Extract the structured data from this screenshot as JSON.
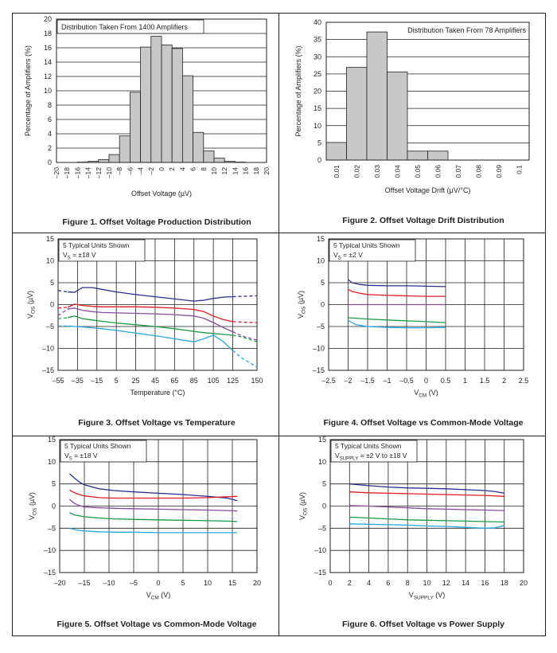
{
  "chart_data": [
    {
      "type": "bar",
      "caption": "Figure 1. Offset Voltage Production Distribution",
      "annotation": "Distribution Taken From 1400 Amplifiers",
      "xlabel": "Offset Voltage (µV)",
      "ylabel": "Percentage of Amplifiers (%)",
      "ylim": [
        0,
        20
      ],
      "yticks": [
        0,
        2,
        4,
        6,
        8,
        10,
        12,
        14,
        16,
        18,
        20
      ],
      "xticks": [
        "–20",
        "–18",
        "–16",
        "–14",
        "–12",
        "–10",
        "–8",
        "–6",
        "–4",
        "–2",
        "0",
        "2",
        "4",
        "6",
        "8",
        "10",
        "12",
        "14",
        "16",
        "18",
        "20"
      ],
      "bins": [
        [
          -16,
          -14,
          0.05
        ],
        [
          -14,
          -12,
          0.15
        ],
        [
          -12,
          -10,
          0.4
        ],
        [
          -10,
          -8,
          1.1
        ],
        [
          -8,
          -6,
          3.7
        ],
        [
          -6,
          -4,
          9.8
        ],
        [
          -4,
          -2,
          16.1
        ],
        [
          -2,
          0,
          17.6
        ],
        [
          0,
          2,
          16.4
        ],
        [
          2,
          4,
          15.9
        ],
        [
          4,
          6,
          12.1
        ],
        [
          6,
          8,
          4.2
        ],
        [
          8,
          10,
          1.6
        ],
        [
          10,
          12,
          0.6
        ],
        [
          12,
          14,
          0.15
        ],
        [
          14,
          16,
          0.05
        ]
      ]
    },
    {
      "type": "bar",
      "caption": "Figure 2. Offset Voltage Drift Distribution",
      "annotation": "Distribution Taken From 78 Amplifiers",
      "xlabel": "Offset Voltage Drift (µV/°C)",
      "ylabel": "Percentage of Amplifiers (%)",
      "ylim": [
        0,
        40
      ],
      "yticks": [
        0,
        5,
        10,
        15,
        20,
        25,
        30,
        35,
        40
      ],
      "xticks": [
        "0.01",
        "0.02",
        "0.03",
        "0.04",
        "0.05",
        "0.06",
        "0.07",
        "0.08",
        "0.09",
        "0.1"
      ],
      "values": [
        5.1,
        26.9,
        37.2,
        25.6,
        2.6,
        2.6,
        0,
        0,
        0,
        0
      ]
    },
    {
      "type": "line",
      "caption": "Figure 3. Offset Voltage vs Temperature",
      "annotation": [
        "5 Typical Units Shown",
        "V",
        "S",
        " = ±18 V"
      ],
      "xlabel": "Temperature (°C)",
      "ylabel": [
        "V",
        "OS",
        " (µV)"
      ],
      "xlim": [
        -55,
        150
      ],
      "ylim": [
        -15,
        15
      ],
      "xticks": [
        -55,
        -35,
        -15,
        5,
        25,
        45,
        65,
        85,
        105,
        125,
        150
      ],
      "xtick_labels": [
        "–55",
        "–35",
        "–15",
        "5",
        "25",
        "45",
        "65",
        "85",
        "105",
        "125",
        "150"
      ],
      "yticks": [
        -15,
        -10,
        -5,
        0,
        5,
        10,
        15
      ],
      "ytick_labels": [
        "–15",
        "–10",
        "–5",
        "0",
        "5",
        "10",
        "15"
      ],
      "solid_range": [
        -40,
        125
      ],
      "series": [
        {
          "color": "#2b2f8f",
          "x": [
            -55,
            -45,
            -38,
            -30,
            -20,
            -10,
            5,
            25,
            45,
            65,
            85,
            95,
            105,
            115,
            125,
            135,
            150
          ],
          "y": [
            3.2,
            2.9,
            2.8,
            3.9,
            3.9,
            3.5,
            2.9,
            2.3,
            1.8,
            1.3,
            0.8,
            1.0,
            1.4,
            1.7,
            1.8,
            1.9,
            2.0
          ]
        },
        {
          "color": "#e11b22",
          "x": [
            -55,
            -45,
            -38,
            -30,
            -20,
            -10,
            5,
            25,
            45,
            65,
            85,
            95,
            105,
            115,
            125,
            135,
            150
          ],
          "y": [
            -0.8,
            -0.6,
            0.1,
            -0.2,
            -0.4,
            -0.5,
            -0.5,
            -0.5,
            -0.6,
            -0.8,
            -1.1,
            -1.6,
            -2.6,
            -3.4,
            -3.9,
            -4.0,
            -4.1
          ]
        },
        {
          "color": "#8a4b9e",
          "x": [
            -55,
            -45,
            -38,
            -30,
            -20,
            -10,
            5,
            25,
            45,
            65,
            85,
            95,
            105,
            115,
            125,
            135,
            150
          ],
          "y": [
            -2.5,
            -1.0,
            -0.8,
            -1.3,
            -1.6,
            -1.8,
            -1.9,
            -2.0,
            -2.1,
            -2.3,
            -2.6,
            -3.1,
            -4.1,
            -5.2,
            -6.2,
            -7.2,
            -8.1
          ]
        },
        {
          "color": "#1a9a48",
          "x": [
            -55,
            -45,
            -38,
            -30,
            -20,
            -10,
            5,
            25,
            45,
            65,
            85,
            95,
            105,
            115,
            125,
            135,
            150
          ],
          "y": [
            -3.2,
            -3.0,
            -2.6,
            -3.2,
            -3.5,
            -3.8,
            -4.2,
            -4.6,
            -5.0,
            -5.5,
            -6.1,
            -6.4,
            -6.6,
            -6.8,
            -7.0,
            -7.4,
            -8.5
          ]
        },
        {
          "color": "#27a8e0",
          "x": [
            -55,
            -45,
            -38,
            -30,
            -20,
            -10,
            5,
            25,
            45,
            65,
            85,
            95,
            105,
            115,
            125,
            135,
            150
          ],
          "y": [
            -4.9,
            -4.9,
            -5.0,
            -5.1,
            -5.3,
            -5.5,
            -5.9,
            -6.5,
            -7.1,
            -7.8,
            -8.5,
            -7.8,
            -7.0,
            -8.4,
            -10.5,
            -12.3,
            -14.3
          ]
        }
      ]
    },
    {
      "type": "line",
      "caption": "Figure 4. Offset Voltage vs Common-Mode Voltage",
      "annotation": [
        "5 Typical Units Shown",
        "V",
        "S",
        " = ±2 V"
      ],
      "xlabel": [
        "V",
        "CM",
        " (V)"
      ],
      "ylabel": [
        "V",
        "OS",
        " (µV)"
      ],
      "xlim": [
        -2.5,
        2.5
      ],
      "ylim": [
        -15,
        15
      ],
      "xticks": [
        -2.5,
        -2,
        -1.5,
        -1,
        -0.5,
        0,
        0.5,
        1,
        1.5,
        2,
        2.5
      ],
      "xtick_labels": [
        "–2.5",
        "–2",
        "–1.5",
        "–1",
        "–0.5",
        "0",
        "0.5",
        "1",
        "1.5",
        "2",
        "2.5"
      ],
      "yticks": [
        -15,
        -10,
        -5,
        0,
        5,
        10,
        15
      ],
      "ytick_labels": [
        "–15",
        "–10",
        "–5",
        "0",
        "5",
        "10",
        "15"
      ],
      "series": [
        {
          "color": "#2b2f8f",
          "x": [
            -2,
            -1.9,
            -1.7,
            -1.5,
            -1,
            -0.5,
            0,
            0.5
          ],
          "y": [
            5.7,
            5.0,
            4.6,
            4.4,
            4.3,
            4.3,
            4.2,
            4.1
          ]
        },
        {
          "color": "#e11b22",
          "x": [
            -2,
            -1.9,
            -1.7,
            -1.5,
            -1,
            -0.5,
            0,
            0.5
          ],
          "y": [
            3.5,
            3.0,
            2.6,
            2.3,
            2.1,
            2.0,
            1.9,
            1.9
          ]
        },
        {
          "color": "#8a4b9e",
          "x": [
            -2,
            -1.5,
            -1,
            -0.5,
            0,
            0.5
          ],
          "y": [
            0,
            0,
            0,
            0,
            0,
            0
          ]
        },
        {
          "color": "#1a9a48",
          "x": [
            -2,
            -1.5,
            -1,
            -0.5,
            0,
            0.5
          ],
          "y": [
            -3.0,
            -3.3,
            -3.5,
            -3.7,
            -3.9,
            -4.1
          ]
        },
        {
          "color": "#27a8e0",
          "x": [
            -2,
            -1.8,
            -1.5,
            -1,
            -0.5,
            0,
            0.5
          ],
          "y": [
            -3.6,
            -4.6,
            -5.0,
            -5.2,
            -5.3,
            -5.3,
            -5.2
          ]
        }
      ]
    },
    {
      "type": "line",
      "caption": "Figure 5. Offset Voltage vs Common-Mode Voltage",
      "annotation": [
        "5 Typical Units Shown",
        "V",
        "S",
        " = ±18 V"
      ],
      "xlabel": [
        "V",
        "CM",
        " (V)"
      ],
      "ylabel": [
        "V",
        "OS",
        " (µV)"
      ],
      "xlim": [
        -20,
        20
      ],
      "ylim": [
        -15,
        15
      ],
      "xticks": [
        -20,
        -15,
        -10,
        -5,
        0,
        5,
        10,
        15,
        20
      ],
      "xtick_labels": [
        "–20",
        "–15",
        "–10",
        "–5",
        "0",
        "5",
        "10",
        "15",
        "20"
      ],
      "yticks": [
        -15,
        -10,
        -5,
        0,
        5,
        10,
        15
      ],
      "ytick_labels": [
        "–15",
        "–10",
        "–5",
        "0",
        "5",
        "10",
        "15"
      ],
      "series": [
        {
          "color": "#2b2f8f",
          "x": [
            -18,
            -17,
            -16,
            -15,
            -12,
            -9,
            -5,
            0,
            5,
            10,
            14,
            16
          ],
          "y": [
            7.3,
            6.3,
            5.4,
            4.8,
            3.9,
            3.5,
            3.2,
            2.9,
            2.6,
            2.2,
            1.8,
            1.2
          ]
        },
        {
          "color": "#e11b22",
          "x": [
            -18,
            -17,
            -16,
            -15,
            -12,
            -9,
            -5,
            0,
            5,
            10,
            14,
            16
          ],
          "y": [
            3.6,
            3.0,
            2.6,
            2.3,
            1.9,
            1.8,
            1.8,
            1.8,
            1.8,
            1.9,
            2.1,
            2.2
          ]
        },
        {
          "color": "#8a4b9e",
          "x": [
            -18,
            -17,
            -16,
            -15,
            -12,
            -9,
            -5,
            0,
            5,
            10,
            14,
            16
          ],
          "y": [
            1.5,
            0.6,
            0.1,
            -0.2,
            -0.4,
            -0.5,
            -0.6,
            -0.7,
            -0.8,
            -0.9,
            -1.0,
            -1.1
          ]
        },
        {
          "color": "#1a9a48",
          "x": [
            -18,
            -17,
            -16,
            -15,
            -12,
            -9,
            -5,
            0,
            5,
            10,
            14,
            16
          ],
          "y": [
            -1.5,
            -2.0,
            -2.2,
            -2.4,
            -2.7,
            -2.9,
            -3.0,
            -3.1,
            -3.2,
            -3.3,
            -3.4,
            -3.5
          ]
        },
        {
          "color": "#27a8e0",
          "x": [
            -18,
            -17,
            -16,
            -15,
            -12,
            -9,
            -5,
            0,
            5,
            10,
            14,
            16
          ],
          "y": [
            -5.0,
            -5.3,
            -5.5,
            -5.6,
            -5.8,
            -5.9,
            -5.9,
            -6.0,
            -6.0,
            -6.0,
            -6.0,
            -6.0
          ]
        }
      ]
    },
    {
      "type": "line",
      "caption": "Figure 6. Offset Voltage vs Power Supply",
      "annotation": [
        "5 Typical Units Shown",
        "V",
        "SUPPLY",
        " = ±2 V to ±18 V"
      ],
      "xlabel": [
        "V",
        "SUPPLY",
        " (V)"
      ],
      "ylabel": [
        "V",
        "OS",
        " (µV)"
      ],
      "xlim": [
        0,
        20
      ],
      "ylim": [
        -15,
        15
      ],
      "xticks": [
        0,
        2,
        4,
        6,
        8,
        10,
        12,
        14,
        16,
        18,
        20
      ],
      "xtick_labels": [
        "0",
        "2",
        "4",
        "6",
        "8",
        "10",
        "12",
        "14",
        "16",
        "18",
        "20"
      ],
      "yticks": [
        -15,
        -10,
        -5,
        0,
        5,
        10,
        15
      ],
      "ytick_labels": [
        "–15",
        "–10",
        "–5",
        "0",
        "5",
        "10",
        "15"
      ],
      "series": [
        {
          "color": "#2b2f8f",
          "x": [
            2,
            4,
            6,
            8,
            10,
            12,
            14,
            16,
            17,
            18
          ],
          "y": [
            5.0,
            4.6,
            4.3,
            4.1,
            4.0,
            3.9,
            3.7,
            3.5,
            3.3,
            2.9
          ]
        },
        {
          "color": "#e11b22",
          "x": [
            2,
            4,
            6,
            8,
            10,
            12,
            14,
            16,
            18
          ],
          "y": [
            3.2,
            3.0,
            2.9,
            2.8,
            2.7,
            2.6,
            2.5,
            2.4,
            2.2
          ]
        },
        {
          "color": "#8a4b9e",
          "x": [
            2,
            4,
            6,
            8,
            10,
            12,
            14,
            16,
            18
          ],
          "y": [
            0.1,
            0.0,
            -0.2,
            -0.4,
            -0.6,
            -0.7,
            -0.8,
            -0.9,
            -1.0
          ]
        },
        {
          "color": "#1a9a48",
          "x": [
            2,
            4,
            6,
            8,
            10,
            12,
            14,
            16,
            18
          ],
          "y": [
            -2.5,
            -2.7,
            -2.9,
            -3.1,
            -3.2,
            -3.3,
            -3.4,
            -3.5,
            -3.6
          ]
        },
        {
          "color": "#27a8e0",
          "x": [
            2,
            4,
            6,
            8,
            10,
            12,
            14,
            15,
            16,
            17,
            18
          ],
          "y": [
            -4.0,
            -4.1,
            -4.2,
            -4.3,
            -4.5,
            -4.6,
            -4.8,
            -4.9,
            -5.0,
            -4.9,
            -4.4
          ]
        }
      ]
    }
  ]
}
